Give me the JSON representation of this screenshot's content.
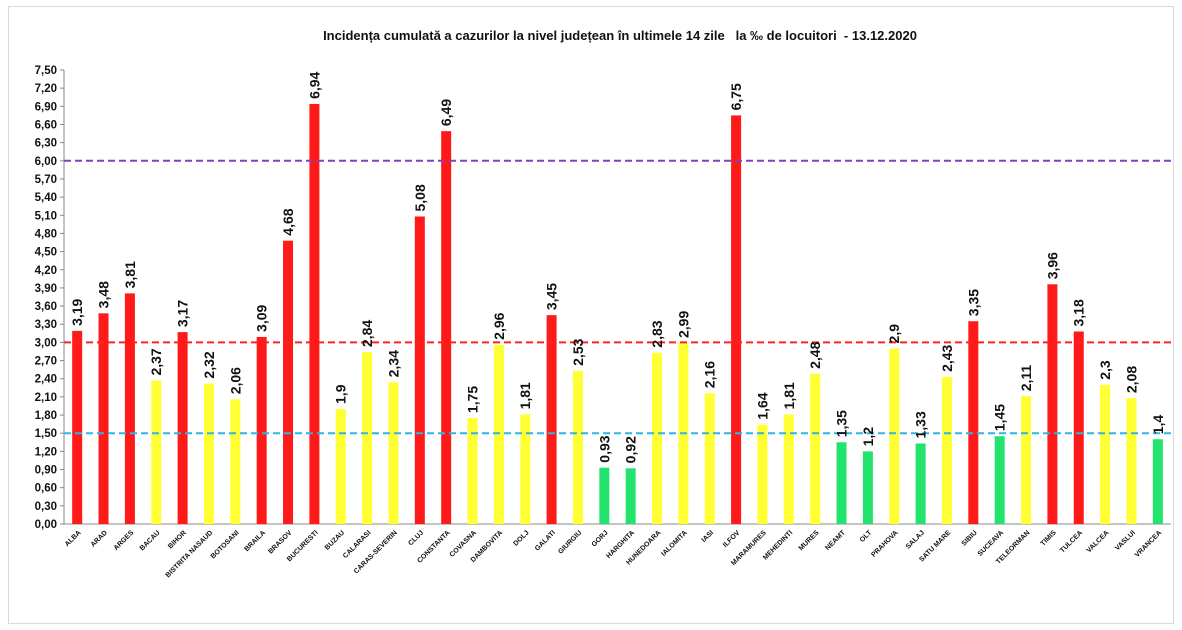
{
  "chart_data": {
    "type": "bar",
    "title": "Incidența cumulată a cazurilor la nivel județean în ultimele 14 zile   la ‰ de locuitori  - 13.12.2020",
    "xlabel": "",
    "ylabel": "",
    "ylim": [
      0,
      7.5
    ],
    "ytick_step": 0.3,
    "grid": false,
    "legend": "none",
    "categories": [
      "ALBA",
      "ARAD",
      "ARGES",
      "BACAU",
      "BIHOR",
      "BISTRITA NASAUD",
      "BOTOSANI",
      "BRAILA",
      "BRASOV",
      "BUCURESTI",
      "BUZAU",
      "CALARASI",
      "CARAS-SEVERIN",
      "CLUJ",
      "CONSTANTA",
      "COVASNA",
      "DAMBOVITA",
      "DOLJ",
      "GALATI",
      "GIURGIU",
      "GORJ",
      "HARGHITA",
      "HUNEDOARA",
      "IALOMITA",
      "IASI",
      "ILFOV",
      "MARAMURES",
      "MEHEDINTI",
      "MURES",
      "NEAMT",
      "OLT",
      "PRAHOVA",
      "SALAJ",
      "SATU MARE",
      "SIBIU",
      "SUCEAVA",
      "TELEORMAN",
      "TIMIS",
      "TULCEA",
      "VALCEA",
      "VASLUI",
      "VRANCEA"
    ],
    "values": [
      3.19,
      3.48,
      3.81,
      2.37,
      3.17,
      2.32,
      2.06,
      3.09,
      4.68,
      6.94,
      1.9,
      2.84,
      2.34,
      5.08,
      6.49,
      1.75,
      2.96,
      1.81,
      3.45,
      2.53,
      0.93,
      0.92,
      2.83,
      2.99,
      2.16,
      6.75,
      1.64,
      1.81,
      2.48,
      1.35,
      1.2,
      2.9,
      1.33,
      2.43,
      3.35,
      1.45,
      2.11,
      3.96,
      3.18,
      2.3,
      2.08,
      1.4
    ],
    "value_labels": [
      "3,19",
      "3,48",
      "3,81",
      "2,37",
      "3,17",
      "2,32",
      "2,06",
      "3,09",
      "4,68",
      "6,94",
      "1,9",
      "2,84",
      "2,34",
      "5,08",
      "6,49",
      "1,75",
      "2,96",
      "1,81",
      "3,45",
      "2,53",
      "0,93",
      "0,92",
      "2,83",
      "2,99",
      "2,16",
      "6,75",
      "1,64",
      "1,81",
      "2,48",
      "1,35",
      "1,2",
      "2,9",
      "1,33",
      "2,43",
      "3,35",
      "1,45",
      "2,11",
      "3,96",
      "3,18",
      "2,3",
      "2,08",
      "1,4"
    ],
    "ytick_labels": [
      "0,00",
      "0,30",
      "0,60",
      "0,90",
      "1,20",
      "1,50",
      "1,80",
      "2,10",
      "2,40",
      "2,70",
      "3,00",
      "3,30",
      "3,60",
      "3,90",
      "4,20",
      "4,50",
      "4,80",
      "5,10",
      "5,40",
      "5,70",
      "6,00",
      "6,30",
      "6,60",
      "6,90",
      "7,20",
      "7,50"
    ],
    "thresholds": [
      {
        "value": 1.5,
        "color": "#2eb4e6"
      },
      {
        "value": 3.0,
        "color": "#ff2020"
      },
      {
        "value": 6.0,
        "color": "#8040c0"
      }
    ],
    "colors": {
      "green": "#22e36d",
      "yellow": "#ffff33",
      "red": "#ff1a1a"
    }
  }
}
